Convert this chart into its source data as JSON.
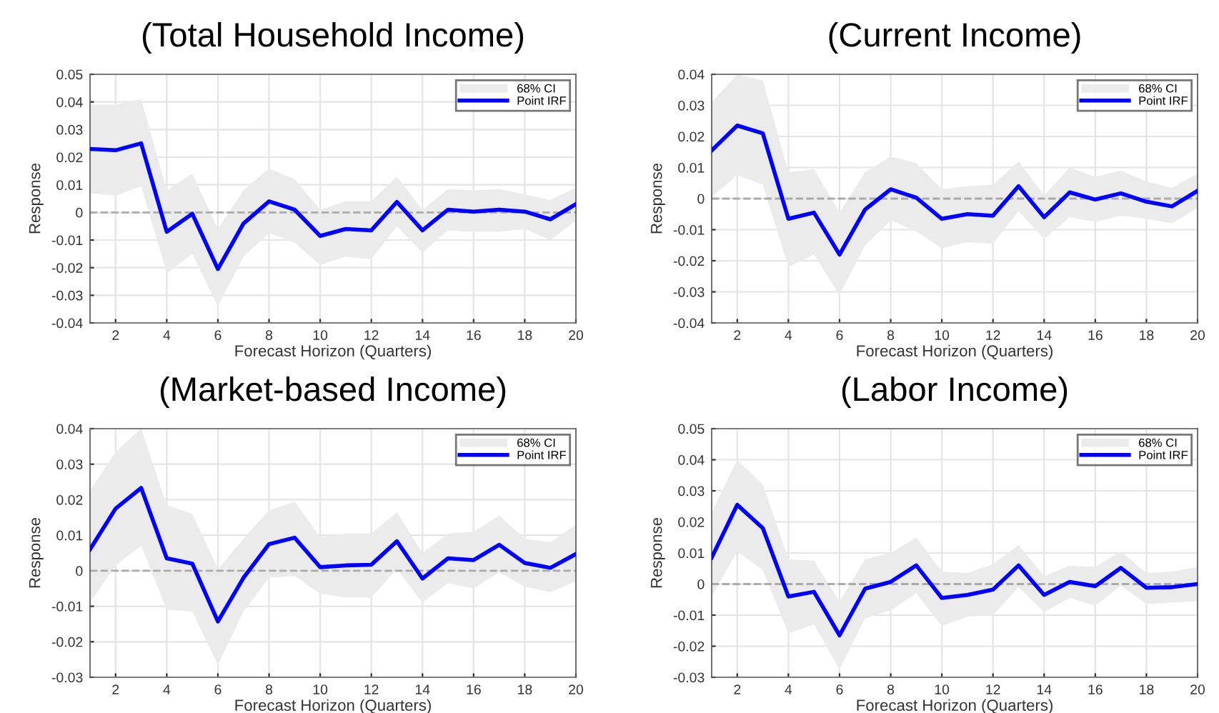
{
  "chart_data": [
    {
      "type": "line",
      "title": "(Total Household Income)",
      "xlabel": "Forecast Horizon (Quarters)",
      "ylabel": "Response",
      "x": [
        1,
        2,
        3,
        4,
        5,
        6,
        7,
        8,
        9,
        10,
        11,
        12,
        13,
        14,
        15,
        16,
        17,
        18,
        19,
        20
      ],
      "xlim": [
        1,
        20
      ],
      "xticks": [
        2,
        4,
        6,
        8,
        10,
        12,
        14,
        16,
        18,
        20
      ],
      "ylim": [
        -0.04,
        0.05
      ],
      "yticks": [
        -0.04,
        -0.03,
        -0.02,
        -0.01,
        0,
        0.01,
        0.02,
        0.03,
        0.04,
        0.05
      ],
      "grid": true,
      "legend": "top right",
      "ref_lines": [
        {
          "axis": "y",
          "value": 0,
          "color": "#aaaaaa",
          "line_style": "dashed"
        }
      ],
      "series": [
        {
          "name": "68% CI",
          "type": "area",
          "color": "#ebebeb",
          "values": [
            null,
            null,
            null,
            null,
            null,
            null,
            null,
            null,
            null,
            null,
            null,
            null,
            null,
            null,
            null,
            null,
            null,
            null,
            null,
            null
          ],
          "lower": [
            0.007,
            0.006,
            0.0095,
            -0.022,
            -0.015,
            -0.034,
            -0.016,
            -0.0075,
            -0.011,
            -0.019,
            -0.016,
            -0.017,
            -0.005,
            -0.0145,
            -0.0065,
            -0.007,
            -0.007,
            -0.006,
            -0.01,
            -0.003
          ],
          "upper": [
            0.039,
            0.039,
            0.041,
            0.008,
            0.014,
            -0.006,
            0.008,
            0.016,
            0.012,
            0.001,
            0.004,
            0.004,
            0.013,
            0.001,
            0.0085,
            0.008,
            0.0085,
            0.0065,
            0.0045,
            0.009
          ]
        },
        {
          "name": "Point IRF",
          "color": "#0000ff",
          "values": [
            0.023,
            0.0225,
            0.025,
            -0.007,
            -0.0005,
            -0.0205,
            -0.004,
            0.004,
            0.001,
            -0.0085,
            -0.006,
            -0.0065,
            0.0038,
            -0.0065,
            0.001,
            0.0003,
            0.001,
            0.0003,
            -0.0025,
            0.003
          ]
        }
      ]
    },
    {
      "type": "line",
      "title": "(Current Income)",
      "xlabel": "Forecast Horizon (Quarters)",
      "ylabel": "Response",
      "x": [
        1,
        2,
        3,
        4,
        5,
        6,
        7,
        8,
        9,
        10,
        11,
        12,
        13,
        14,
        15,
        16,
        17,
        18,
        19,
        20
      ],
      "xlim": [
        1,
        20
      ],
      "xticks": [
        2,
        4,
        6,
        8,
        10,
        12,
        14,
        16,
        18,
        20
      ],
      "ylim": [
        -0.04,
        0.04
      ],
      "yticks": [
        -0.04,
        -0.03,
        -0.02,
        -0.01,
        0,
        0.01,
        0.02,
        0.03,
        0.04
      ],
      "grid": true,
      "legend": "top right",
      "ref_lines": [
        {
          "axis": "y",
          "value": 0,
          "color": "#aaaaaa",
          "line_style": "dashed"
        }
      ],
      "series": [
        {
          "name": "68% CI",
          "type": "area",
          "color": "#ebebeb",
          "values": [
            null,
            null,
            null,
            null,
            null,
            null,
            null,
            null,
            null,
            null,
            null,
            null,
            null,
            null,
            null,
            null,
            null,
            null,
            null,
            null
          ],
          "lower": [
            0.0005,
            0.0075,
            0.0045,
            -0.022,
            -0.018,
            -0.031,
            -0.015,
            -0.007,
            -0.0105,
            -0.016,
            -0.014,
            -0.0145,
            -0.004,
            -0.013,
            -0.006,
            -0.0075,
            -0.0055,
            -0.0065,
            -0.008,
            -0.003
          ],
          "upper": [
            0.031,
            0.04,
            0.038,
            0.0085,
            0.0095,
            -0.0045,
            0.0085,
            0.0135,
            0.0115,
            0.003,
            0.004,
            0.0045,
            0.012,
            0.001,
            0.01,
            0.007,
            0.009,
            0.0055,
            0.0035,
            0.008
          ]
        },
        {
          "name": "Point IRF",
          "color": "#0000ff",
          "values": [
            0.0155,
            0.0235,
            0.021,
            -0.0065,
            -0.0045,
            -0.018,
            -0.0035,
            0.003,
            0.0003,
            -0.0065,
            -0.005,
            -0.0055,
            0.004,
            -0.006,
            0.002,
            -0.0003,
            0.0017,
            -0.001,
            -0.0025,
            0.0025
          ]
        }
      ]
    },
    {
      "type": "line",
      "title": "(Market-based Income)",
      "xlabel": "Forecast Horizon (Quarters)",
      "ylabel": "Response",
      "x": [
        1,
        2,
        3,
        4,
        5,
        6,
        7,
        8,
        9,
        10,
        11,
        12,
        13,
        14,
        15,
        16,
        17,
        18,
        19,
        20
      ],
      "xlim": [
        1,
        20
      ],
      "xticks": [
        2,
        4,
        6,
        8,
        10,
        12,
        14,
        16,
        18,
        20
      ],
      "ylim": [
        -0.03,
        0.04
      ],
      "yticks": [
        -0.03,
        -0.02,
        -0.01,
        0,
        0.01,
        0.02,
        0.03,
        0.04
      ],
      "grid": true,
      "legend": "top right",
      "ref_lines": [
        {
          "axis": "y",
          "value": 0,
          "color": "#aaaaaa",
          "line_style": "dashed"
        }
      ],
      "series": [
        {
          "name": "68% CI",
          "type": "area",
          "color": "#ebebeb",
          "values": [
            null,
            null,
            null,
            null,
            null,
            null,
            null,
            null,
            null,
            null,
            null,
            null,
            null,
            null,
            null,
            null,
            null,
            null,
            null,
            null
          ],
          "lower": [
            -0.009,
            0.0015,
            0.007,
            -0.011,
            -0.0115,
            -0.0265,
            -0.0115,
            -0.002,
            -0.0015,
            -0.0065,
            -0.0075,
            -0.0075,
            0.0005,
            -0.009,
            -0.0035,
            -0.005,
            -0.0005,
            -0.0045,
            -0.006,
            -0.003
          ],
          "upper": [
            0.0225,
            0.0335,
            0.04,
            0.0185,
            0.016,
            0.0005,
            0.009,
            0.017,
            0.0195,
            0.0095,
            0.0105,
            0.0105,
            0.0165,
            0.005,
            0.0105,
            0.011,
            0.0155,
            0.009,
            0.008,
            0.013
          ]
        },
        {
          "name": "Point IRF",
          "color": "#0000ff",
          "values": [
            0.006,
            0.0175,
            0.0233,
            0.0035,
            0.002,
            -0.0143,
            -0.002,
            0.0075,
            0.0093,
            0.001,
            0.0015,
            0.0017,
            0.0083,
            -0.0022,
            0.0035,
            0.003,
            0.0073,
            0.0022,
            0.0008,
            0.0047
          ]
        }
      ]
    },
    {
      "type": "line",
      "title": "(Labor Income)",
      "xlabel": "Forecast Horizon (Quarters)",
      "ylabel": "Response",
      "x": [
        1,
        2,
        3,
        4,
        5,
        6,
        7,
        8,
        9,
        10,
        11,
        12,
        13,
        14,
        15,
        16,
        17,
        18,
        19,
        20
      ],
      "xlim": [
        1,
        20
      ],
      "xticks": [
        2,
        4,
        6,
        8,
        10,
        12,
        14,
        16,
        18,
        20
      ],
      "ylim": [
        -0.03,
        0.05
      ],
      "yticks": [
        -0.03,
        -0.02,
        -0.01,
        0,
        0.01,
        0.02,
        0.03,
        0.04,
        0.05
      ],
      "grid": true,
      "legend": "top right",
      "ref_lines": [
        {
          "axis": "y",
          "value": 0,
          "color": "#aaaaaa",
          "line_style": "dashed"
        }
      ],
      "series": [
        {
          "name": "68% CI",
          "type": "area",
          "color": "#ebebeb",
          "values": [
            null,
            null,
            null,
            null,
            null,
            null,
            null,
            null,
            null,
            null,
            null,
            null,
            null,
            null,
            null,
            null,
            null,
            null,
            null,
            null
          ],
          "lower": [
            -0.004,
            0.0105,
            0.0045,
            -0.016,
            -0.013,
            -0.0275,
            -0.011,
            -0.0085,
            -0.003,
            -0.0135,
            -0.0105,
            -0.01,
            -0.001,
            -0.009,
            -0.0045,
            -0.007,
            -0.0005,
            -0.0065,
            -0.006,
            -0.0055
          ],
          "upper": [
            0.023,
            0.04,
            0.032,
            0.008,
            0.0075,
            -0.0055,
            0.008,
            0.01,
            0.015,
            0.004,
            0.0035,
            0.0065,
            0.0125,
            0.0025,
            0.006,
            0.0055,
            0.0105,
            0.0035,
            0.004,
            0.0055
          ]
        },
        {
          "name": "Point IRF",
          "color": "#0000ff",
          "values": [
            0.0085,
            0.0255,
            0.018,
            -0.004,
            -0.0025,
            -0.0165,
            -0.0015,
            0.0007,
            0.006,
            -0.0045,
            -0.0035,
            -0.0018,
            0.006,
            -0.0035,
            0.0007,
            -0.0007,
            0.0052,
            -0.0012,
            -0.001,
            0
          ]
        }
      ]
    }
  ]
}
